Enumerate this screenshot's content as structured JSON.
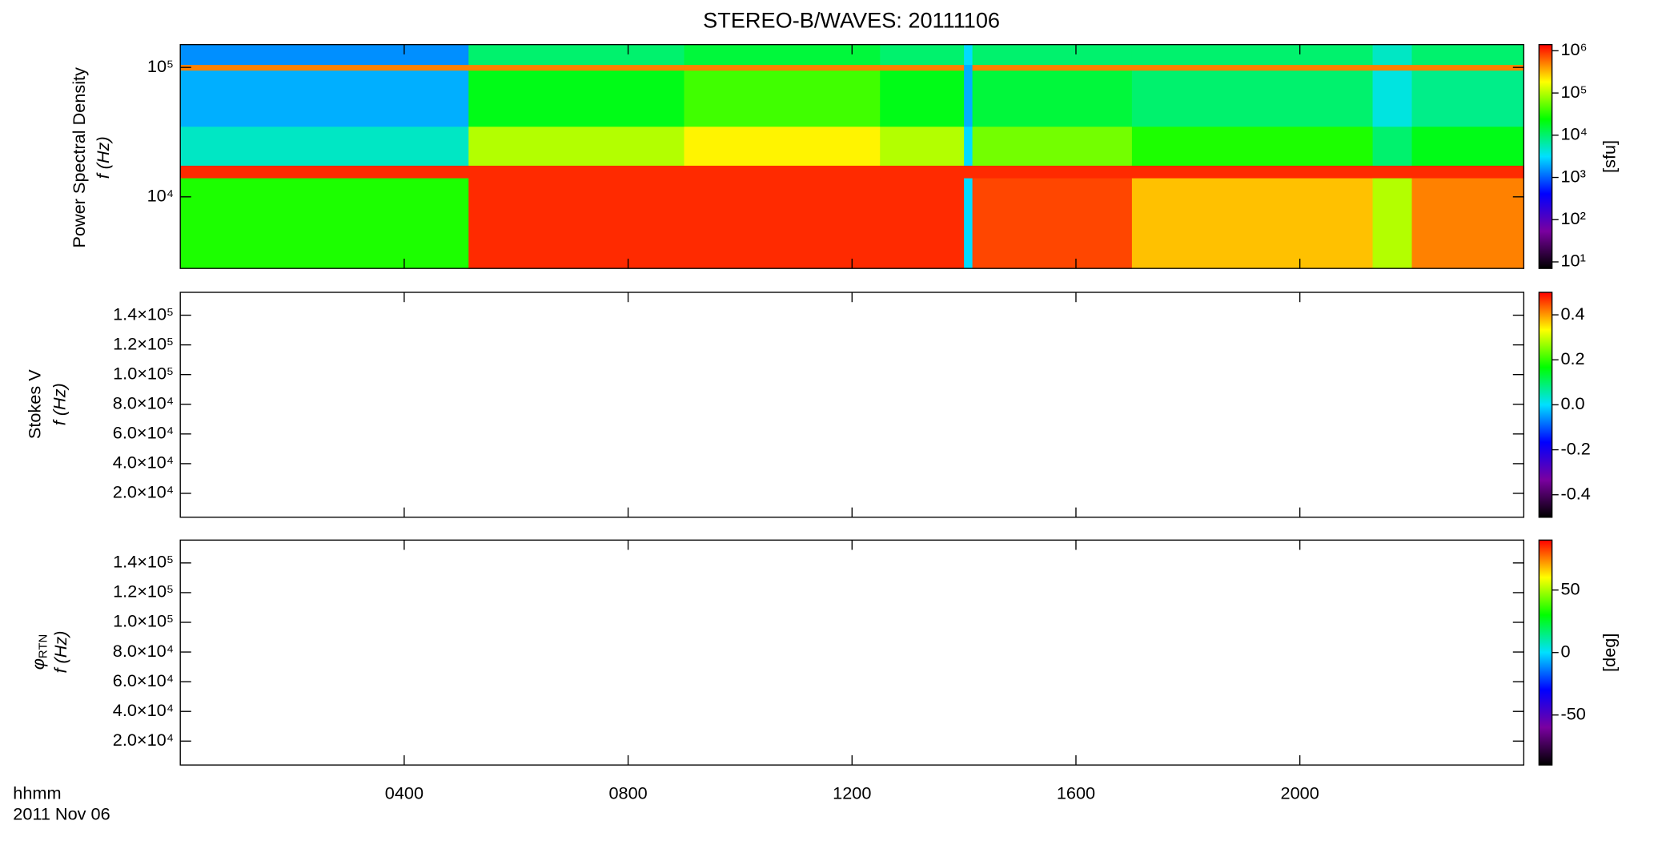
{
  "chart_data": [
    {
      "type": "heatmap",
      "title": "STEREO-B/WAVES: 20111106",
      "ylabel": "Power Spectral Density",
      "ylabel2": "f (Hz)",
      "ylog": true,
      "ylim": [
        2800,
        150000
      ],
      "yticks": [
        {
          "value": 10000,
          "label": "10⁴"
        },
        {
          "value": 100000,
          "label": "10⁵"
        }
      ],
      "t_edges": [
        0,
        5.15,
        9,
        12.5,
        14,
        14.15,
        17,
        21.3,
        22,
        24
      ],
      "f_edges": [
        2800,
        14000,
        17500,
        35000,
        95000,
        105000,
        150000
      ],
      "values": [
        [
          30000,
          1000000,
          5000,
          2000,
          500000,
          1500
        ],
        [
          1000000,
          1000000,
          100000,
          20000,
          500000,
          10000
        ],
        [
          1000000,
          1000000,
          200000,
          40000,
          500000,
          15000
        ],
        [
          1000000,
          1000000,
          100000,
          20000,
          500000,
          10000
        ],
        [
          3000,
          1000000,
          3000,
          2000,
          2000,
          3000
        ],
        [
          800000,
          1000000,
          60000,
          15000,
          500000,
          10000
        ],
        [
          300000,
          1000000,
          30000,
          10000,
          500000,
          10000
        ],
        [
          100000,
          1000000,
          10000,
          4000,
          500000,
          5000
        ],
        [
          500000,
          1000000,
          20000,
          8000,
          500000,
          10000
        ]
      ],
      "clog": true,
      "clim": [
        7,
        1400000
      ],
      "cticks": [
        {
          "value": 10,
          "label": "10¹"
        },
        {
          "value": 100,
          "label": "10²"
        },
        {
          "value": 1000,
          "label": "10³"
        },
        {
          "value": 10000,
          "label": "10⁴"
        },
        {
          "value": 100000,
          "label": "10⁵"
        },
        {
          "value": 1000000,
          "label": "10⁶"
        }
      ],
      "clabel": "[sfu]",
      "colormap": [
        "#000000",
        "#7a00a0",
        "#0000ff",
        "#00e0ff",
        "#00ff00",
        "#ffff00",
        "#ff0000"
      ]
    },
    {
      "type": "heatmap",
      "ylabel": "Stokes V",
      "ylabel2": "f (Hz)",
      "ylog": false,
      "ylim": [
        3900,
        155400
      ],
      "yticks": [
        {
          "value": 20000,
          "label": "2.0×10⁴"
        },
        {
          "value": 40000,
          "label": "4.0×10⁴"
        },
        {
          "value": 60000,
          "label": "6.0×10⁴"
        },
        {
          "value": 80000,
          "label": "8.0×10⁴"
        },
        {
          "value": 100000,
          "label": "1.0×10⁵"
        },
        {
          "value": 120000,
          "label": "1.2×10⁵"
        },
        {
          "value": 140000,
          "label": "1.4×10⁵"
        }
      ],
      "clog": false,
      "clim": [
        -0.5,
        0.5
      ],
      "cticks": [
        -0.4,
        -0.2,
        {
          "value": 0,
          "label": "0.0"
        },
        0.2,
        0.4
      ],
      "colormap": [
        "#000000",
        "#7a00a0",
        "#0000ff",
        "#00e0ff",
        "#00ff00",
        "#ffff00",
        "#ff0000"
      ]
    },
    {
      "type": "heatmap",
      "ylabel": "φ",
      "ylabel_sub": "RTN",
      "ylabel2": "f (Hz)",
      "ylog": false,
      "ylim": [
        3900,
        155400
      ],
      "yticks": [
        {
          "value": 20000,
          "label": "2.0×10⁴"
        },
        {
          "value": 40000,
          "label": "4.0×10⁴"
        },
        {
          "value": 60000,
          "label": "6.0×10⁴"
        },
        {
          "value": 80000,
          "label": "8.0×10⁴"
        },
        {
          "value": 100000,
          "label": "1.0×10⁵"
        },
        {
          "value": 120000,
          "label": "1.2×10⁵"
        },
        {
          "value": 140000,
          "label": "1.4×10⁵"
        }
      ],
      "clog": false,
      "clim": [
        -90,
        90
      ],
      "cticks": [
        -50,
        0,
        50
      ],
      "clabel": "[deg]",
      "xlim": [
        0,
        24
      ],
      "xticks": [
        {
          "value": 4,
          "label": "0400"
        },
        {
          "value": 8,
          "label": "0800"
        },
        {
          "value": 12,
          "label": "1200"
        },
        {
          "value": 16,
          "label": "1600"
        },
        {
          "value": 20,
          "label": "2000"
        }
      ],
      "xlabel": "hhmm",
      "date": "2011 Nov 06",
      "colormap": [
        "#000000",
        "#7a00a0",
        "#0000ff",
        "#00e0ff",
        "#00ff00",
        "#ffff00",
        "#ff0000"
      ]
    }
  ]
}
